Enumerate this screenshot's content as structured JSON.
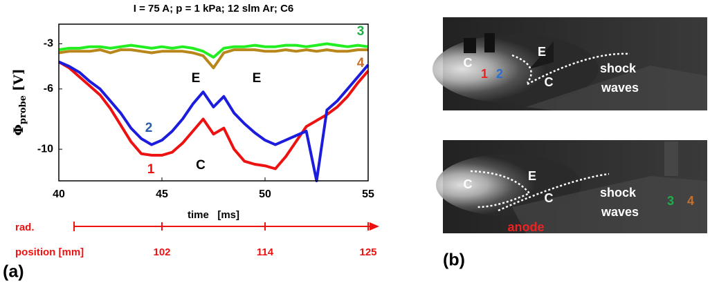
{
  "chart_data": {
    "type": "line",
    "title": "I = 75 A; p = 1 kPa; 12 slm Ar; C6",
    "xlabel": "time   [ms]",
    "ylabel_symbol": "Φ",
    "ylabel_subscript": "probe",
    "ylabel_unit": "[V]",
    "x": [
      40,
      40.5,
      41,
      41.5,
      42,
      42.5,
      43,
      43.5,
      44,
      44.5,
      45,
      45.5,
      46,
      46.5,
      47,
      47.5,
      48,
      48.5,
      49,
      49.5,
      50,
      50.5,
      51,
      51.5,
      52,
      52.5,
      53,
      53.5,
      54,
      54.5,
      55
    ],
    "series": [
      {
        "name": "3",
        "color": "#22ee22",
        "label_color": "#1fae4a",
        "values": [
          -3.4,
          -3.3,
          -3.3,
          -3.2,
          -3.2,
          -3.3,
          -3.2,
          -3.1,
          -3.2,
          -3.3,
          -3.2,
          -3.3,
          -3.2,
          -3.3,
          -3.5,
          -3.9,
          -3.3,
          -3.2,
          -3.2,
          -3.1,
          -3.2,
          -3.2,
          -3.1,
          -3.1,
          -3.2,
          -3.1,
          -3.0,
          -3.1,
          -3.2,
          -3.1,
          -3.2
        ]
      },
      {
        "name": "4",
        "color": "#b8861a",
        "label_color": "#c8702a",
        "values": [
          -3.6,
          -3.5,
          -3.5,
          -3.5,
          -3.4,
          -3.6,
          -3.4,
          -3.4,
          -3.5,
          -3.6,
          -3.5,
          -3.5,
          -3.5,
          -3.6,
          -3.8,
          -4.6,
          -3.6,
          -3.4,
          -3.4,
          -3.4,
          -3.5,
          -3.5,
          -3.4,
          -3.5,
          -3.4,
          -3.5,
          -3.4,
          -3.5,
          -3.5,
          -3.4,
          -3.4
        ]
      },
      {
        "name": "1",
        "color": "#ee1111",
        "label_color": "#ee1111",
        "values": [
          -4.2,
          -4.6,
          -5.2,
          -5.8,
          -6.4,
          -7.3,
          -8.4,
          -9.5,
          -10.3,
          -10.4,
          -10.4,
          -10.2,
          -9.6,
          -8.8,
          -8.0,
          -9.0,
          -8.6,
          -10.0,
          -10.8,
          -11.0,
          -11.1,
          -11.3,
          -10.5,
          -9.5,
          -8.5,
          -8.1,
          -7.7,
          -7.2,
          -6.5,
          -5.6,
          -4.8
        ]
      },
      {
        "name": "2",
        "color": "#1c1cdd",
        "label_color": "#2a5ca8",
        "values": [
          -4.2,
          -4.5,
          -4.9,
          -5.5,
          -6.0,
          -6.8,
          -7.6,
          -8.6,
          -9.3,
          -9.7,
          -9.4,
          -8.8,
          -8.0,
          -7.0,
          -6.2,
          -7.2,
          -6.5,
          -7.6,
          -8.3,
          -8.9,
          -9.4,
          -9.7,
          -9.4,
          -9.1,
          -8.8,
          -12.1,
          -7.4,
          -6.8,
          -6.0,
          -5.2,
          -4.4
        ]
      }
    ],
    "xlim": [
      40,
      55
    ],
    "xticks": [
      40,
      45,
      50,
      55
    ],
    "ylim": [
      -12.1,
      -1.7
    ],
    "yticks": [
      -3,
      -6,
      -10
    ],
    "annotations": [
      "E",
      "E",
      "C"
    ],
    "secondary_axis": {
      "label_line1": "rad.",
      "label_line2": "position [mm]",
      "at": [
        45,
        50,
        55
      ],
      "ticks": [
        102,
        114,
        125
      ],
      "color": "#ee1111"
    },
    "panel_label": "(a)"
  },
  "panel_b": {
    "label": "(b)",
    "top_image": [
      "C",
      "1",
      "2",
      "E",
      "C",
      "shock",
      "waves"
    ],
    "bottom_image": [
      "C",
      "E",
      "C",
      "shock",
      "waves",
      "3",
      "4",
      "anode"
    ]
  }
}
